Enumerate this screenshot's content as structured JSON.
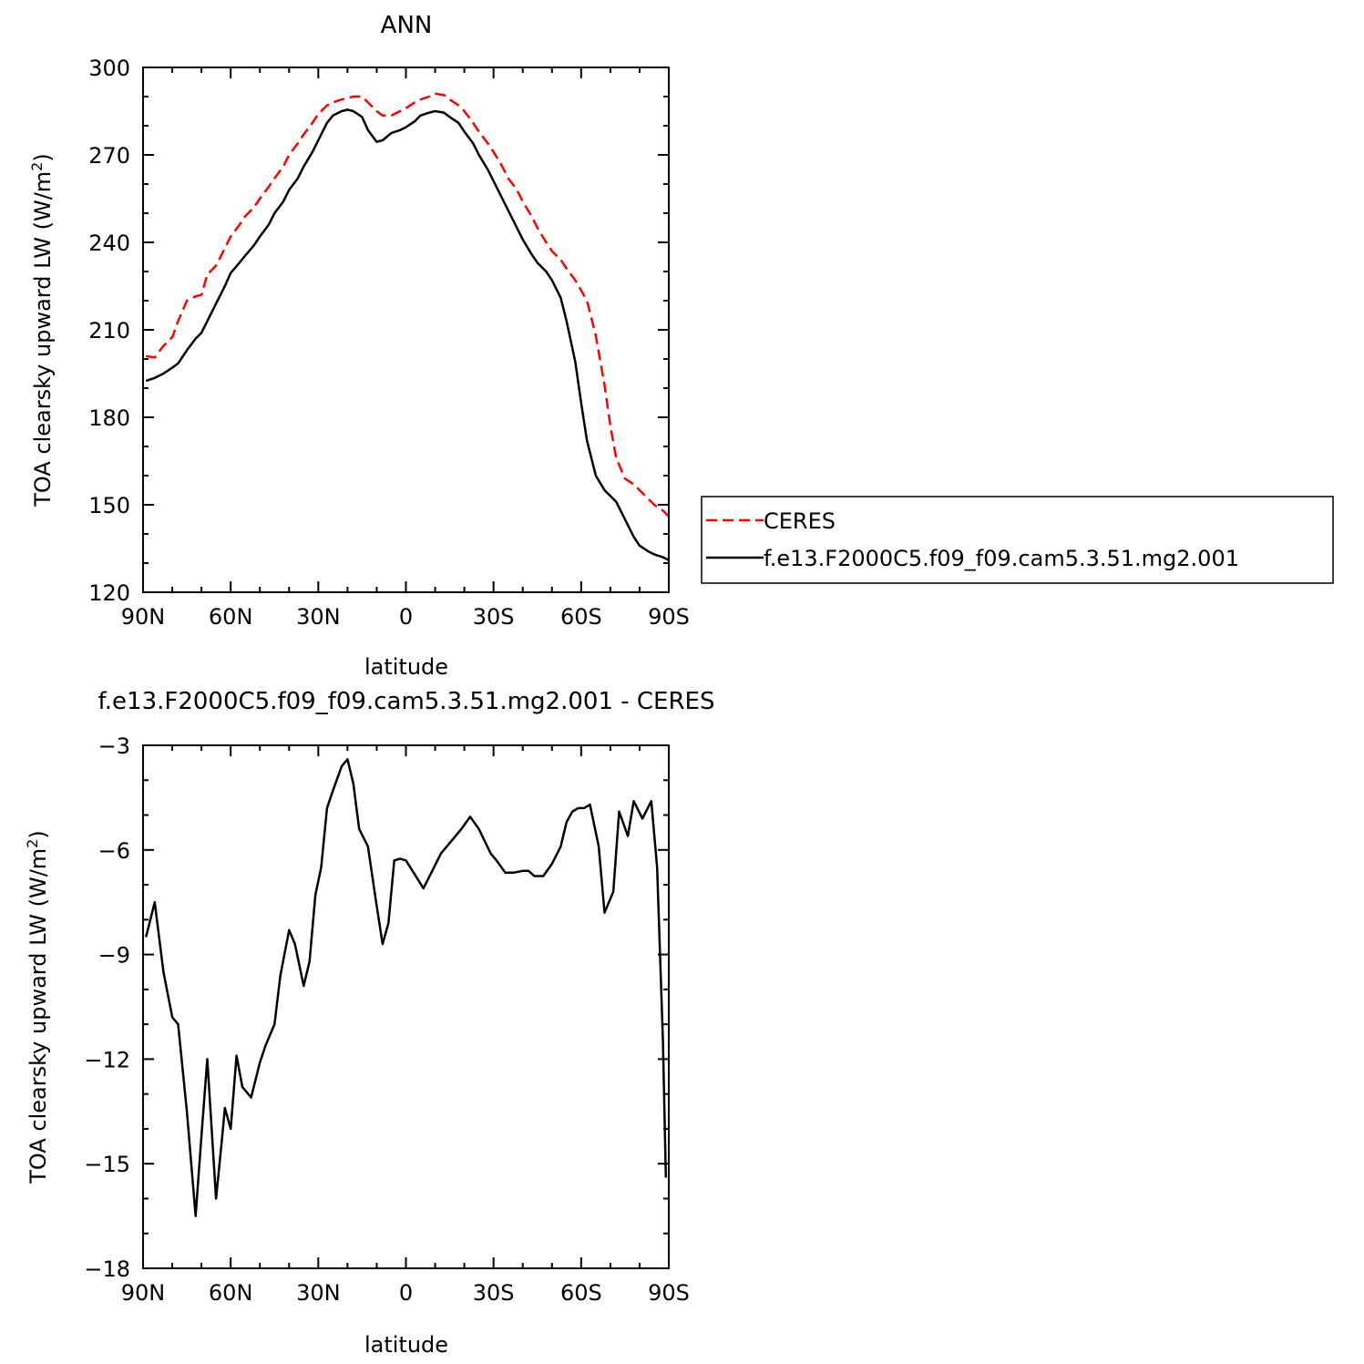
{
  "chart_data": [
    {
      "type": "line",
      "title": "ANN",
      "xlabel": "latitude",
      "ylabel": "TOA clearsky upward LW (W/m",
      "ylabel_sup": "2",
      "ylabel_tail": ")",
      "xlim": [
        90,
        -90
      ],
      "ylim": [
        120,
        300
      ],
      "xticks": [
        90,
        60,
        30,
        0,
        -30,
        -60,
        -90
      ],
      "xticklabels": [
        "90N",
        "60N",
        "30N",
        "0",
        "30S",
        "60S",
        "90S"
      ],
      "yticks": [
        120,
        150,
        180,
        210,
        240,
        270,
        300
      ],
      "yticklabels": [
        "120",
        "150",
        "180",
        "210",
        "240",
        "270",
        "300"
      ],
      "legend": "right",
      "series": [
        {
          "name": "CERES",
          "color": "#ff0000",
          "style": "dashed",
          "x": [
            89,
            86,
            83,
            80,
            78,
            75,
            72,
            70,
            68,
            65,
            62,
            60,
            57,
            55,
            52,
            50,
            47,
            45,
            42,
            40,
            37,
            35,
            32,
            30,
            27,
            25,
            22,
            20,
            18,
            15,
            13,
            10,
            8,
            5,
            2,
            0,
            -3,
            -5,
            -8,
            -10,
            -13,
            -15,
            -18,
            -20,
            -23,
            -25,
            -28,
            -30,
            -33,
            -35,
            -38,
            -40,
            -43,
            -45,
            -48,
            -50,
            -53,
            -55,
            -58,
            -60,
            -62,
            -65,
            -68,
            -70,
            -72,
            -75,
            -78,
            -80,
            -83,
            -85,
            -88,
            -90
          ],
          "y": [
            201,
            200.5,
            204.5,
            207.5,
            213,
            220,
            221.5,
            222,
            229,
            232,
            238,
            242,
            246,
            249,
            252,
            255,
            259,
            262,
            266,
            270,
            274,
            277,
            281,
            284,
            287,
            288,
            289,
            289.5,
            290,
            290,
            288,
            285,
            283.5,
            283.5,
            285,
            286,
            288,
            289,
            290,
            291,
            290.5,
            289,
            287,
            285,
            281,
            278,
            274,
            271,
            266,
            262,
            258,
            254,
            249,
            245,
            240,
            237,
            234,
            231,
            227,
            223.5,
            220,
            208,
            191,
            177,
            166,
            159,
            157,
            155,
            152,
            150,
            148,
            146
          ]
        },
        {
          "name": "f.e13.F2000C5.f09_f09.cam5.3.51.mg2.001",
          "color": "#000000",
          "style": "solid",
          "x": [
            89,
            86,
            83,
            80,
            78,
            75,
            72,
            70,
            68,
            65,
            62,
            60,
            57,
            55,
            52,
            50,
            47,
            45,
            42,
            40,
            37,
            35,
            32,
            30,
            27,
            25,
            22,
            20,
            18,
            15,
            13,
            10,
            8,
            5,
            2,
            0,
            -3,
            -5,
            -8,
            -10,
            -13,
            -15,
            -18,
            -20,
            -23,
            -25,
            -28,
            -30,
            -33,
            -35,
            -38,
            -40,
            -43,
            -45,
            -48,
            -50,
            -53,
            -55,
            -58,
            -60,
            -62,
            -65,
            -68,
            -70,
            -72,
            -75,
            -78,
            -80,
            -83,
            -85,
            -88,
            -90
          ],
          "y": [
            192.5,
            193.5,
            195,
            197,
            198.5,
            203,
            207,
            209,
            213,
            219,
            225,
            229.5,
            233,
            235.5,
            239,
            242,
            246,
            250,
            254,
            258,
            262,
            266,
            271,
            275,
            281,
            283.5,
            285,
            285.5,
            285,
            283,
            278.5,
            274.5,
            275,
            277.5,
            278.5,
            279.5,
            281.5,
            283.5,
            284.5,
            285,
            284.5,
            283,
            281,
            278,
            274,
            270,
            265,
            261,
            255,
            251,
            245,
            241,
            236,
            233,
            230,
            227,
            221,
            213,
            199,
            185,
            172,
            160,
            155,
            153,
            151,
            145,
            139,
            136,
            134,
            133,
            132,
            131
          ]
        }
      ]
    },
    {
      "type": "line",
      "title": "f.e13.F2000C5.f09_f09.cam5.3.51.mg2.001  -  CERES",
      "xlabel": "latitude",
      "ylabel": "TOA clearsky upward LW (W/m",
      "ylabel_sup": "2",
      "ylabel_tail": ")",
      "xlim": [
        90,
        -90
      ],
      "ylim": [
        -18,
        -3
      ],
      "xticks": [
        90,
        60,
        30,
        0,
        -30,
        -60,
        -90
      ],
      "xticklabels": [
        "90N",
        "60N",
        "30N",
        "0",
        "30S",
        "60S",
        "90S"
      ],
      "yticks": [
        -18,
        -15,
        -12,
        -9,
        -6,
        -3
      ],
      "yticklabels": [
        "−18",
        "−15",
        "−12",
        "−9",
        "−6",
        "−3"
      ],
      "series": [
        {
          "color": "#000000",
          "style": "solid",
          "x": [
            89,
            86,
            83,
            80,
            78,
            75,
            72,
            70,
            68,
            65,
            63,
            62,
            60,
            58,
            56,
            53,
            50,
            48,
            45,
            43,
            40,
            38,
            35,
            33,
            31,
            29,
            27,
            25,
            22,
            20,
            18,
            16,
            13,
            10,
            8,
            6,
            4,
            2,
            0,
            -3,
            -6,
            -9,
            -12,
            -16,
            -19,
            -22,
            -25,
            -27,
            -29,
            -31,
            -34,
            -37,
            -40,
            -42,
            -44,
            -47,
            -50,
            -53,
            -55,
            -57,
            -59,
            -61,
            -63,
            -66,
            -68,
            -71,
            -73,
            -76,
            -78,
            -81,
            -84,
            -86,
            -88,
            -89
          ],
          "y": [
            -8.5,
            -7.5,
            -9.5,
            -10.8,
            -11,
            -13.5,
            -16.5,
            -14.2,
            -12,
            -16,
            -14.3,
            -13.4,
            -14,
            -11.9,
            -12.8,
            -13.1,
            -12.1,
            -11.6,
            -11,
            -9.6,
            -8.3,
            -8.7,
            -9.9,
            -9.2,
            -7.3,
            -6.5,
            -4.8,
            -4.3,
            -3.6,
            -3.4,
            -4.1,
            -5.4,
            -5.9,
            -7.6,
            -8.7,
            -8.1,
            -6.3,
            -6.25,
            -6.3,
            -6.7,
            -7.1,
            -6.6,
            -6.1,
            -5.7,
            -5.4,
            -5.05,
            -5.4,
            -5.75,
            -6.1,
            -6.3,
            -6.65,
            -6.65,
            -6.6,
            -6.6,
            -6.75,
            -6.75,
            -6.4,
            -5.9,
            -5.2,
            -4.9,
            -4.8,
            -4.8,
            -4.7,
            -5.9,
            -7.8,
            -7.2,
            -4.9,
            -5.6,
            -4.6,
            -5.1,
            -4.6,
            -6.5,
            -11.5,
            -15.4
          ]
        }
      ]
    }
  ]
}
